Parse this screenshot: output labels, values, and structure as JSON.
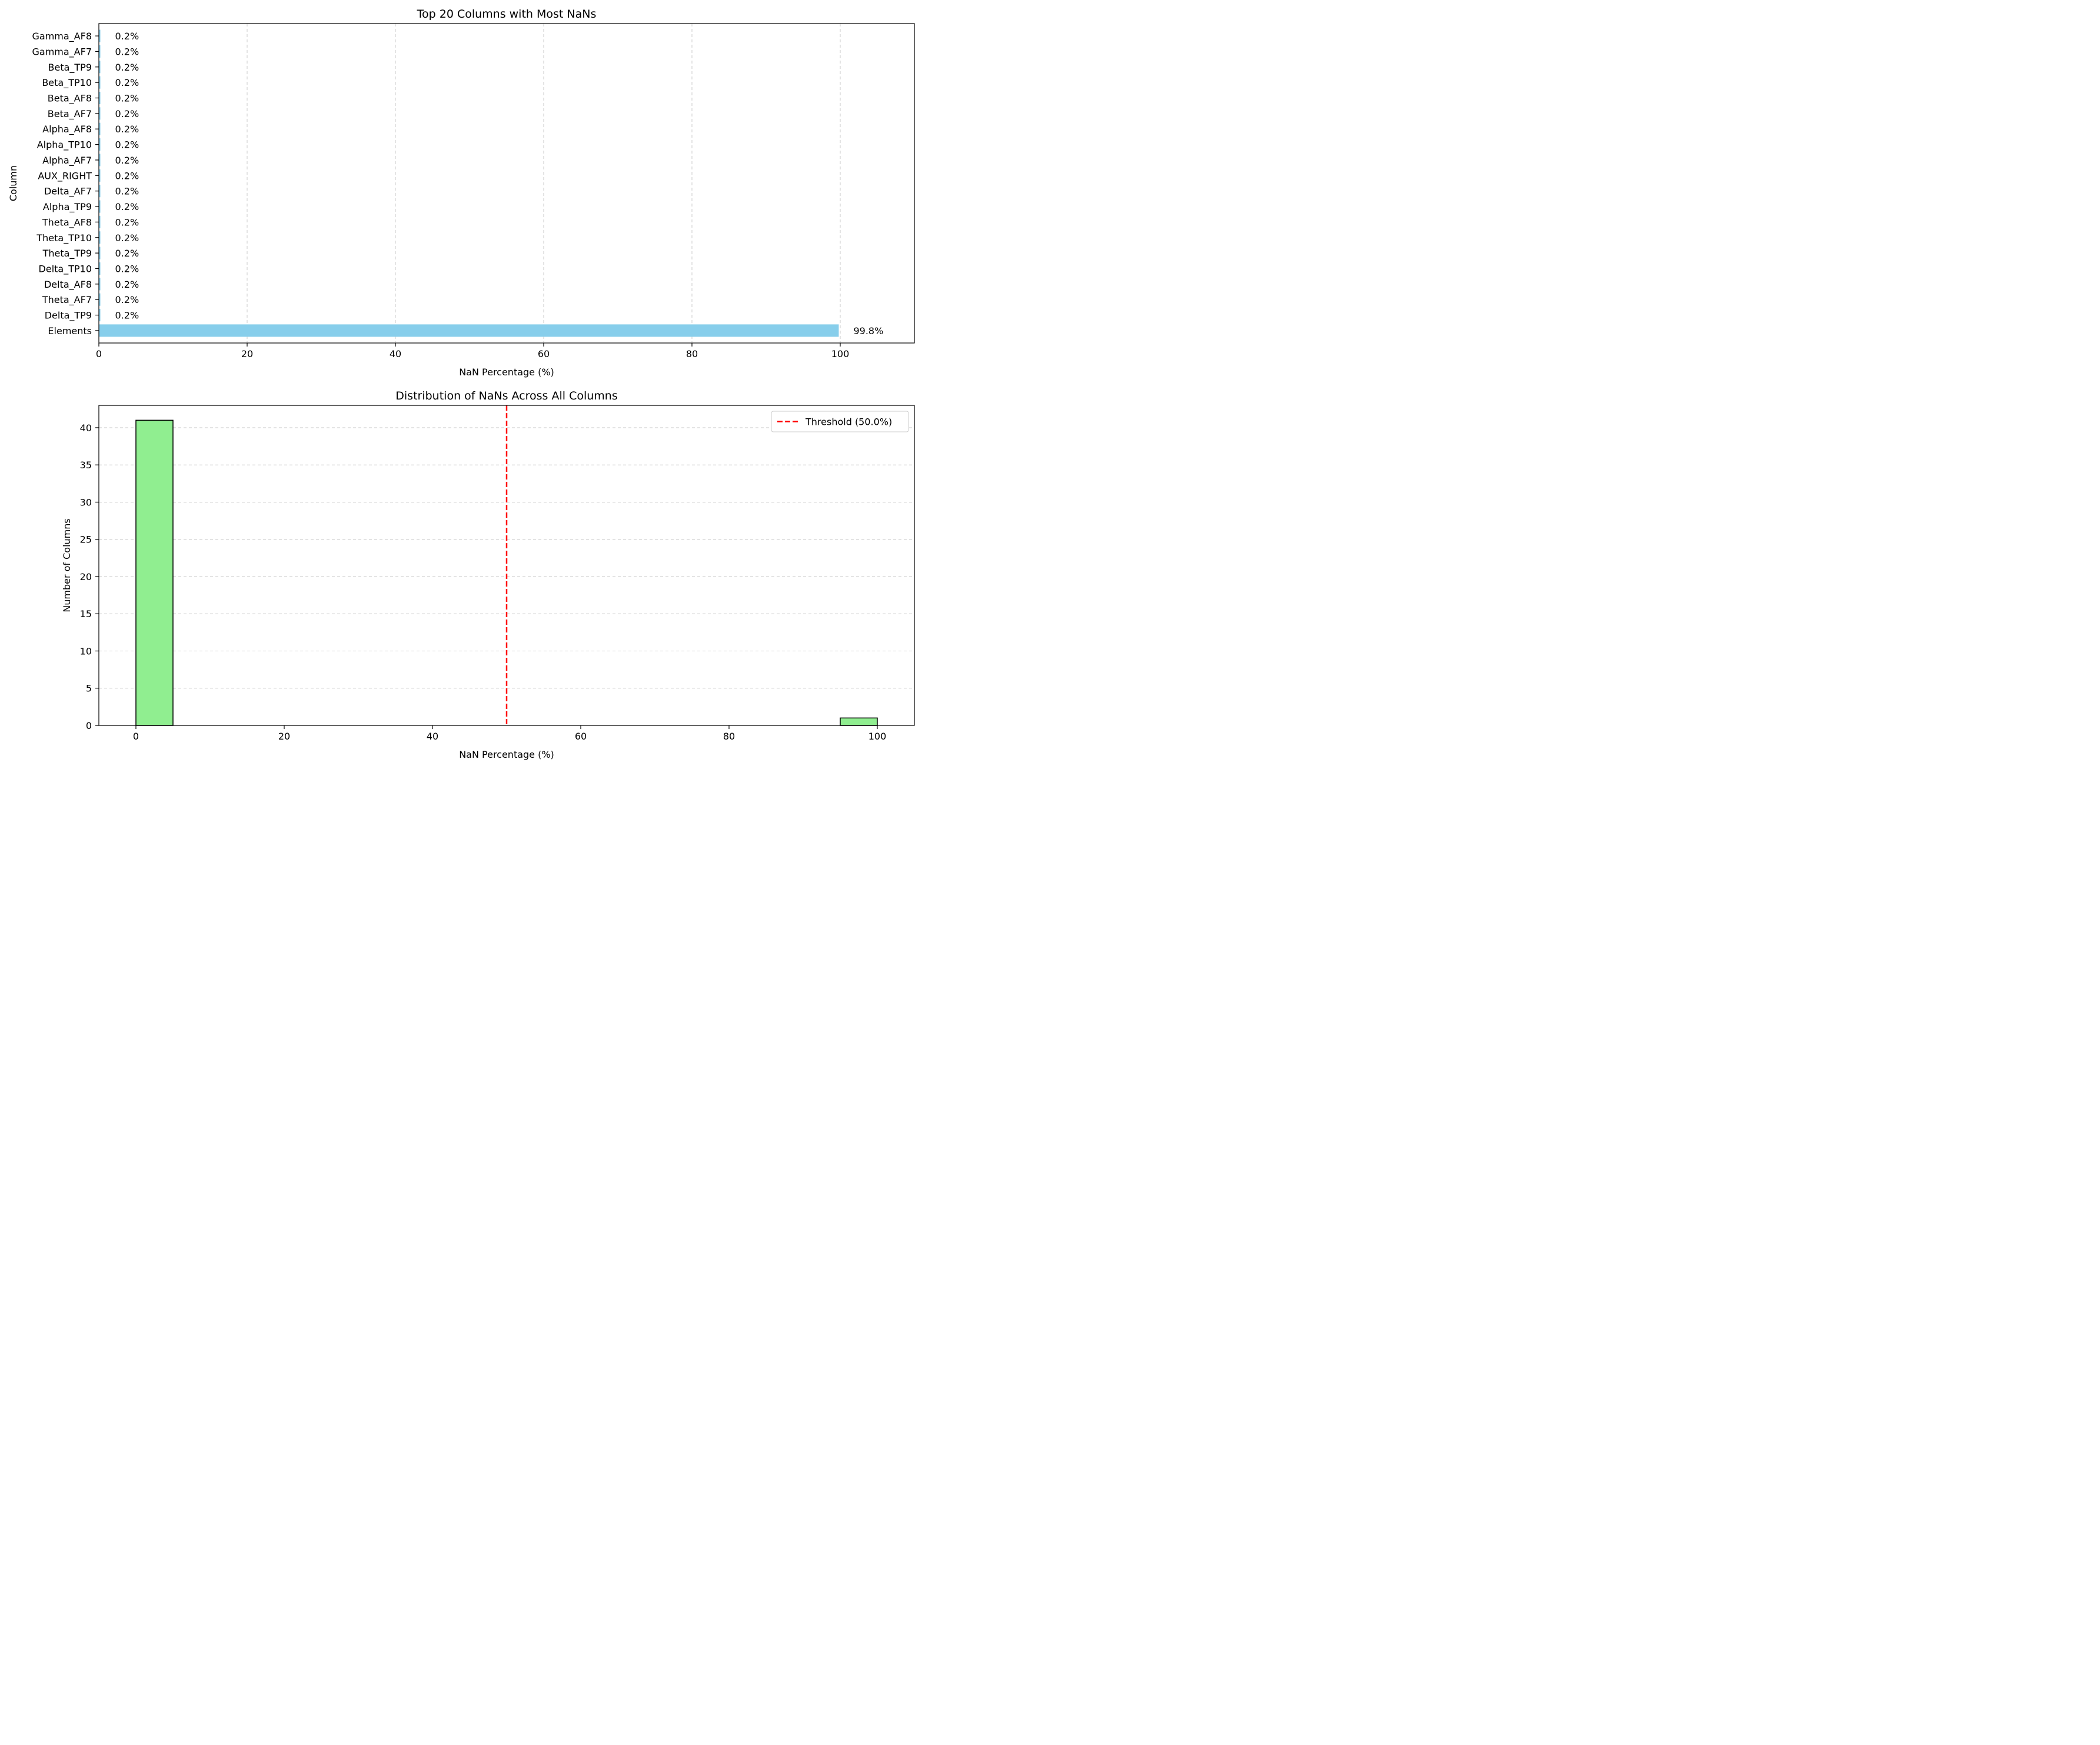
{
  "chart_data": [
    {
      "type": "bar",
      "orientation": "horizontal",
      "title": "Top 20 Columns with Most NaNs",
      "xlabel": "NaN Percentage (%)",
      "ylabel": "Column",
      "xlim": [
        0,
        110
      ],
      "xticks": [
        0,
        20,
        40,
        60,
        80,
        100
      ],
      "grid": "x, dashed",
      "bar_color": "#87ceeb",
      "categories": [
        "Elements",
        "Delta_TP9",
        "Theta_AF7",
        "Delta_AF8",
        "Delta_TP10",
        "Theta_TP9",
        "Theta_TP10",
        "Theta_AF8",
        "Alpha_TP9",
        "Delta_AF7",
        "AUX_RIGHT",
        "Alpha_AF7",
        "Alpha_TP10",
        "Alpha_AF8",
        "Beta_AF7",
        "Beta_AF8",
        "Beta_TP10",
        "Beta_TP9",
        "Gamma_AF7",
        "Gamma_AF8"
      ],
      "values": [
        99.8,
        0.2,
        0.2,
        0.2,
        0.2,
        0.2,
        0.2,
        0.2,
        0.2,
        0.2,
        0.2,
        0.2,
        0.2,
        0.2,
        0.2,
        0.2,
        0.2,
        0.2,
        0.2,
        0.2
      ],
      "data_labels": [
        "99.8%",
        "0.2%",
        "0.2%",
        "0.2%",
        "0.2%",
        "0.2%",
        "0.2%",
        "0.2%",
        "0.2%",
        "0.2%",
        "0.2%",
        "0.2%",
        "0.2%",
        "0.2%",
        "0.2%",
        "0.2%",
        "0.2%",
        "0.2%",
        "0.2%",
        "0.2%"
      ]
    },
    {
      "type": "bar",
      "subtype": "histogram",
      "title": "Distribution of NaNs Across All Columns",
      "xlabel": "NaN Percentage (%)",
      "ylabel": "Number of Columns",
      "xlim": [
        -5,
        105
      ],
      "ylim": [
        0,
        43
      ],
      "xticks": [
        0,
        20,
        40,
        60,
        80,
        100
      ],
      "yticks": [
        0,
        5,
        10,
        15,
        20,
        25,
        30,
        35,
        40
      ],
      "grid": "y, dashed",
      "bar_color": "#90ee90",
      "bins": [
        {
          "start": 0,
          "end": 5,
          "count": 41
        },
        {
          "start": 5,
          "end": 10,
          "count": 0
        },
        {
          "start": 10,
          "end": 15,
          "count": 0
        },
        {
          "start": 15,
          "end": 20,
          "count": 0
        },
        {
          "start": 20,
          "end": 25,
          "count": 0
        },
        {
          "start": 25,
          "end": 30,
          "count": 0
        },
        {
          "start": 30,
          "end": 35,
          "count": 0
        },
        {
          "start": 35,
          "end": 40,
          "count": 0
        },
        {
          "start": 40,
          "end": 45,
          "count": 0
        },
        {
          "start": 45,
          "end": 50,
          "count": 0
        },
        {
          "start": 50,
          "end": 55,
          "count": 0
        },
        {
          "start": 55,
          "end": 60,
          "count": 0
        },
        {
          "start": 60,
          "end": 65,
          "count": 0
        },
        {
          "start": 65,
          "end": 70,
          "count": 0
        },
        {
          "start": 70,
          "end": 75,
          "count": 0
        },
        {
          "start": 75,
          "end": 80,
          "count": 0
        },
        {
          "start": 80,
          "end": 85,
          "count": 0
        },
        {
          "start": 85,
          "end": 90,
          "count": 0
        },
        {
          "start": 90,
          "end": 95,
          "count": 0
        },
        {
          "start": 95,
          "end": 100,
          "count": 1
        }
      ],
      "threshold": {
        "value": 50,
        "label": "Threshold (50.0%)",
        "color": "#ff0000"
      },
      "legend": {
        "position": "top-right",
        "entries": [
          "Threshold (50.0%)"
        ]
      }
    }
  ]
}
